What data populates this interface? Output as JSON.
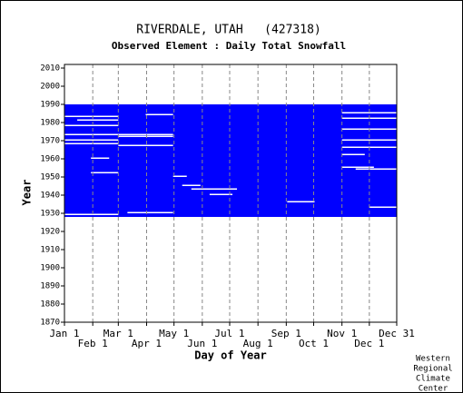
{
  "chart_data": {
    "type": "availability",
    "title": "RIVERDALE, UTAH   (427318)",
    "subtitle": "Observed Element : Daily Total Snowfall",
    "x_label": "Day of Year",
    "y_label": "Year",
    "xlim": [
      1,
      365
    ],
    "ylim": [
      1870,
      2012
    ],
    "xticks": [
      {
        "value": 1,
        "label": "Jan 1"
      },
      {
        "value": 32,
        "label": "Feb 1"
      },
      {
        "value": 60,
        "label": "Mar 1"
      },
      {
        "value": 91,
        "label": "Apr 1"
      },
      {
        "value": 121,
        "label": "May 1"
      },
      {
        "value": 152,
        "label": "Jun 1"
      },
      {
        "value": 182,
        "label": "Jul 1"
      },
      {
        "value": 213,
        "label": "Aug 1"
      },
      {
        "value": 244,
        "label": "Sep 1"
      },
      {
        "value": 274,
        "label": "Oct 1"
      },
      {
        "value": 305,
        "label": "Nov 1"
      },
      {
        "value": 335,
        "label": "Dec 1"
      },
      {
        "value": 365,
        "label": "Dec 31"
      }
    ],
    "yticks": [
      1870,
      1880,
      1890,
      1900,
      1910,
      1920,
      1930,
      1940,
      1950,
      1960,
      1970,
      1980,
      1990,
      2000,
      2010
    ],
    "grid": true,
    "color": "#0000ff",
    "coverage": {
      "x": [
        1,
        365
      ],
      "y": [
        1928,
        1990
      ]
    },
    "gaps": [
      {
        "x": [
          1,
          60
        ],
        "y": 1983
      },
      {
        "x": [
          15,
          60
        ],
        "y": 1981
      },
      {
        "x": [
          1,
          60
        ],
        "y": 1978
      },
      {
        "x": [
          1,
          120
        ],
        "y": 1973
      },
      {
        "x": [
          60,
          120
        ],
        "y": 1972
      },
      {
        "x": [
          1,
          60
        ],
        "y": 1970
      },
      {
        "x": [
          1,
          60
        ],
        "y": 1968
      },
      {
        "x": [
          60,
          120
        ],
        "y": 1967
      },
      {
        "x": [
          90,
          120
        ],
        "y": 1984
      },
      {
        "x": [
          305,
          365
        ],
        "y": 1985
      },
      {
        "x": [
          305,
          365
        ],
        "y": 1982
      },
      {
        "x": [
          305,
          365
        ],
        "y": 1976
      },
      {
        "x": [
          305,
          365
        ],
        "y": 1970
      },
      {
        "x": [
          305,
          365
        ],
        "y": 1966
      },
      {
        "x": [
          305,
          340
        ],
        "y": 1955
      },
      {
        "x": [
          320,
          365
        ],
        "y": 1954
      },
      {
        "x": [
          30,
          60
        ],
        "y": 1952
      },
      {
        "x": [
          120,
          135
        ],
        "y": 1950
      },
      {
        "x": [
          130,
          150
        ],
        "y": 1945
      },
      {
        "x": [
          140,
          190
        ],
        "y": 1943
      },
      {
        "x": [
          160,
          185
        ],
        "y": 1940
      },
      {
        "x": [
          245,
          275
        ],
        "y": 1936
      },
      {
        "x": [
          335,
          365
        ],
        "y": 1933
      },
      {
        "x": [
          70,
          120
        ],
        "y": 1930
      },
      {
        "x": [
          1,
          60
        ],
        "y": 1929
      },
      {
        "x": [
          30,
          50
        ],
        "y": 1960
      },
      {
        "x": [
          305,
          330
        ],
        "y": 1962
      }
    ],
    "footer": [
      "Western",
      "Regional",
      "Climate",
      "Center"
    ]
  }
}
